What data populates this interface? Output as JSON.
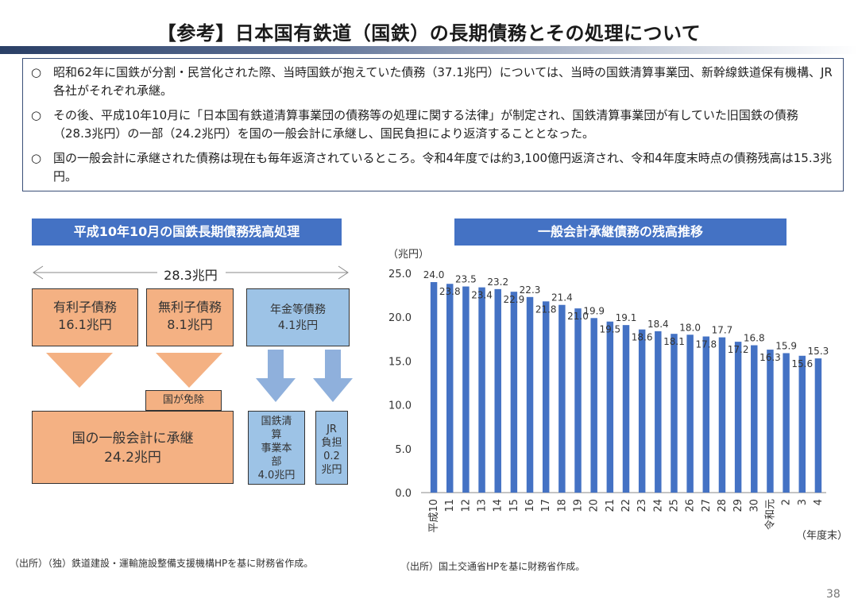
{
  "header": {
    "title": "【参考】日本国有鉄道（国鉄）の長期債務とその処理について"
  },
  "summary": {
    "bullet_mark": "○",
    "items": [
      "昭和62年に国鉄が分割・民営化された際、当時国鉄が抱えていた債務（37.1兆円）については、当時の国鉄清算事業団、新幹線鉄道保有機構、JR各社がそれぞれ承継。",
      "その後、平成10年10月に「日本国有鉄道清算事業団の債務等の処理に関する法律」が制定され、国鉄清算事業団が有していた旧国鉄の債務（28.3兆円）の一部（24.2兆円）を国の一般会計に承継し、国民負担により返済することとなった。",
      "国の一般会計に承継された債務は現在も毎年返済されているところ。令和4年度では約3,100億円返済され、令和4年度末時点の債務残高は15.3兆円。"
    ]
  },
  "left_panel": {
    "heading": "平成10年10月の国鉄長期債務残高処理",
    "total_label": "28.3兆円",
    "box_interest": {
      "line1": "有利子債務",
      "line2": "16.1兆円"
    },
    "box_noninterest": {
      "line1": "無利子債務",
      "line2": "8.1兆円"
    },
    "box_pension": {
      "line1": "年金等債務",
      "line2": "4.1兆円"
    },
    "exempt_label": "国が免除",
    "box_general": {
      "line1": "国の一般会計に承継",
      "line2": "24.2兆円"
    },
    "box_jnr": {
      "lines": [
        "国鉄清",
        "算",
        "事業本",
        "部",
        "4.0兆円"
      ]
    },
    "box_jr": {
      "lines": [
        "JR",
        "負担",
        "0.2",
        "兆円"
      ]
    },
    "source": "（出所）（独）鉄道建設・運輸施設整備支援機構HPを基に財務省作成。",
    "colors": {
      "orange": "#f4b183",
      "blue": "#9dc3e6",
      "arrow_orange": "#f4b183",
      "arrow_blue": "#8fb0dc"
    }
  },
  "right_panel": {
    "heading": "一般会計承継債務の残高推移",
    "source": "（出所）国土交通省HPを基に財務省作成。"
  },
  "chart_data": {
    "type": "bar",
    "title": "一般会計承継債務の残高推移",
    "ylabel": "（兆円）",
    "xlabel": "（年度末）",
    "ylim": [
      0,
      25
    ],
    "yticks": [
      "0.0",
      "5.0",
      "10.0",
      "15.0",
      "20.0",
      "25.0"
    ],
    "grid": false,
    "bar_color": "#4472c4",
    "categories": [
      "平成10",
      "11",
      "12",
      "13",
      "14",
      "15",
      "16",
      "17",
      "18",
      "19",
      "20",
      "21",
      "22",
      "23",
      "24",
      "25",
      "26",
      "27",
      "28",
      "29",
      "30",
      "令和元",
      "2",
      "3",
      "4"
    ],
    "values": [
      24.0,
      23.8,
      23.5,
      23.4,
      23.2,
      22.9,
      22.3,
      21.8,
      21.4,
      21.0,
      19.9,
      19.5,
      19.1,
      18.6,
      18.4,
      18.1,
      18.0,
      17.8,
      17.7,
      17.2,
      16.8,
      16.3,
      15.9,
      15.6,
      15.3
    ],
    "value_labels": [
      "24.0",
      "23.8",
      "23.5",
      "23.4",
      "23.2",
      "22.9",
      "22.3",
      "21.8",
      "21.4",
      "21.0",
      "19.9",
      "19.5",
      "19.1",
      "18.6",
      "18.4",
      "18.1",
      "18.0",
      "17.8",
      "17.7",
      "17.2",
      "16.8",
      "16.3",
      "15.9",
      "15.6",
      "15.3"
    ]
  },
  "footer": {
    "page_number": "38"
  }
}
